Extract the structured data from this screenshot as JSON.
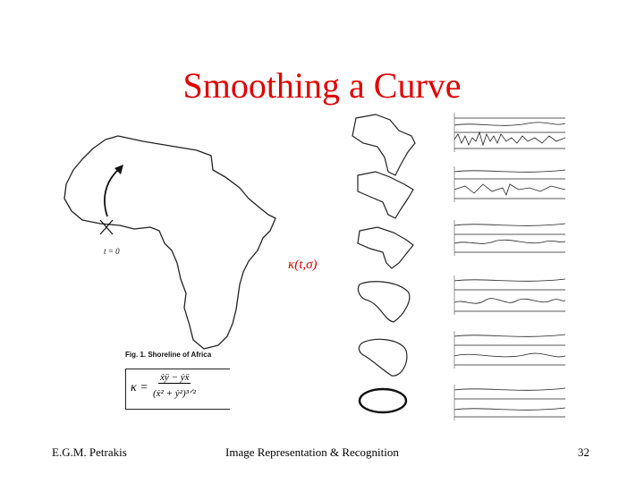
{
  "slide": {
    "title": "Smoothing a Curve",
    "kappa_label": "κ(t,σ)",
    "t_label": "t = 0",
    "figure_caption": "Fig. 1.  Shoreline of Africa",
    "formula": {
      "kappa": "κ =",
      "numerator": "ẋÿ − ẏẍ",
      "denominator": "(ẋ² + ẏ²)³ᐟ²"
    },
    "footer": {
      "author": "E.G.M. Petrakis",
      "course": "Image Representation & Recognition",
      "page": "32"
    }
  },
  "colors": {
    "title": "#e00000",
    "kappa": "#e00000",
    "line": "#222222"
  },
  "icons": [
    "arrow-icon"
  ]
}
